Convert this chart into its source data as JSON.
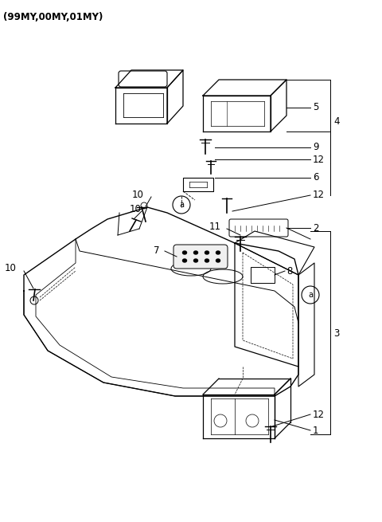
{
  "title": "(99MY,00MY,01MY)",
  "background_color": "#ffffff",
  "line_color": "#000000",
  "text_color": "#000000",
  "font_size_title": 8.5,
  "font_size_label": 8.5
}
